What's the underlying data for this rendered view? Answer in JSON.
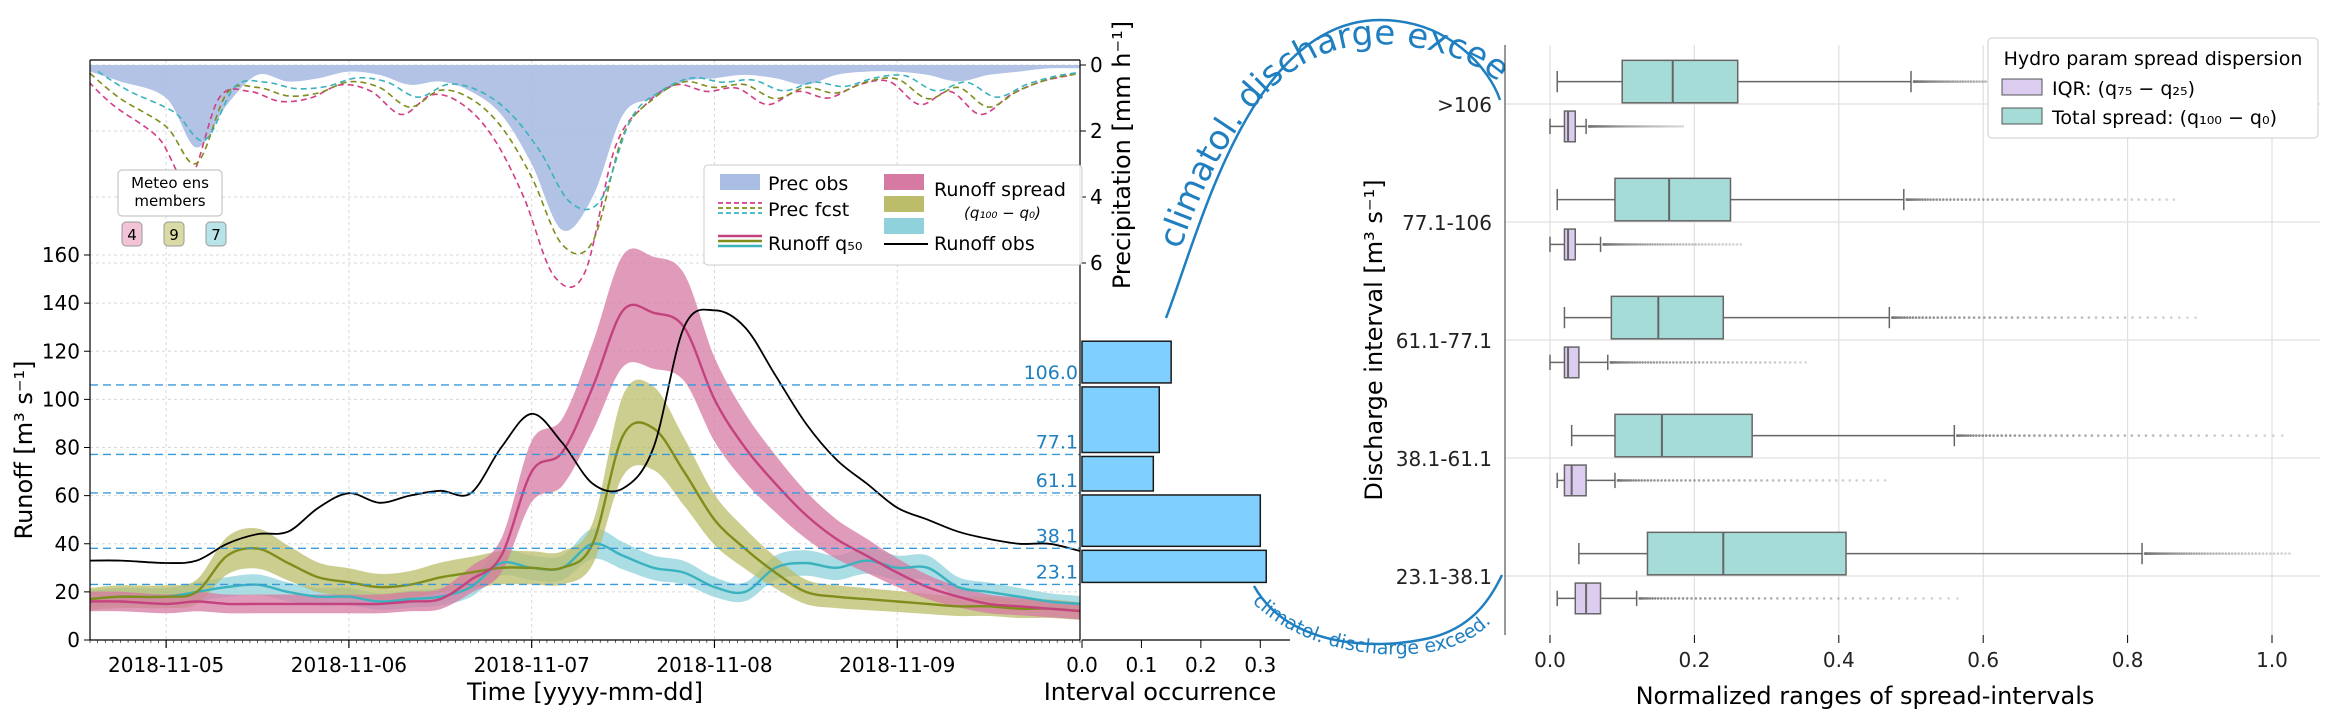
{
  "panel_left": {
    "xlabel": "Time [yyyy-mm-dd]",
    "ylabel": "Runoff [m³ s⁻¹]",
    "ylabel_top": "Precipitation [mm h⁻¹]",
    "x_ticks": [
      "2018-11-05",
      "2018-11-06",
      "2018-11-07",
      "2018-11-08",
      "2018-11-09"
    ],
    "y_ticks": [
      0,
      20,
      40,
      60,
      80,
      100,
      120,
      140,
      160
    ],
    "prec_ticks": [
      0,
      2,
      4,
      6
    ],
    "thresholds": [
      106.0,
      77.1,
      61.1,
      38.1,
      23.1
    ],
    "threshold_labels": [
      "106.0",
      "77.1",
      "61.1",
      "38.1",
      "23.1"
    ],
    "meteo_box": {
      "title_line1": "Meteo ens",
      "title_line2": "members",
      "members": [
        {
          "label": "4",
          "color": "#f2c3d6"
        },
        {
          "label": "9",
          "color": "#dadba4"
        },
        {
          "label": "7",
          "color": "#b8e3e8"
        }
      ]
    },
    "legend": {
      "prec_obs": "Prec obs",
      "prec_fcst": "Prec fcst",
      "runoff_q50": "Runoff q₅₀",
      "runoff_spread": "Runoff spread",
      "runoff_spread_sub": "(q₁₀₀ − q₀)",
      "runoff_obs": "Runoff obs"
    },
    "colors": {
      "prec_obs": "#aabde3",
      "pink": "#c4427e",
      "olive": "#7f8d1c",
      "teal": "#3ab3bf",
      "threshold": "#3a9ad9",
      "obs": "#000000"
    }
  },
  "panel_mid": {
    "xlabel": "Interval occurrence",
    "x_ticks": [
      "0.0",
      "0.1",
      "0.2",
      "0.3"
    ],
    "curve_label": "climatol. discharge exceed.",
    "bar_color": "#80d0ff"
  },
  "panel_right": {
    "xlabel": "Normalized ranges of spread-intervals",
    "ylabel": "Discharge interval [m³ s⁻¹]",
    "x_ticks": [
      "0.0",
      "0.2",
      "0.4",
      "0.6",
      "0.8",
      "1.0"
    ],
    "legend_title": "Hydro param spread dispersion",
    "legend_iqr": "IQR: (q₇₅ − q₂₅)",
    "legend_total": "Total spread: (q₁₀₀ − q₀)",
    "colors": {
      "iqr": "#dcccef",
      "total": "#a6dcd8"
    }
  },
  "chart_data": [
    {
      "type": "line",
      "title": "",
      "xlabel": "Time [yyyy-mm-dd]",
      "ylabel": "Runoff [m³ s⁻¹]",
      "ylim": [
        0,
        160
      ],
      "xlim": [
        "2018-11-04 14:00",
        "2018-11-10 00:00"
      ],
      "x": [
        "2018-11-04 14:00",
        "2018-11-04 18:00",
        "2018-11-05 00:00",
        "2018-11-05 04:00",
        "2018-11-05 08:00",
        "2018-11-05 12:00",
        "2018-11-05 16:00",
        "2018-11-05 20:00",
        "2018-11-06 00:00",
        "2018-11-06 04:00",
        "2018-11-06 08:00",
        "2018-11-06 12:00",
        "2018-11-06 16:00",
        "2018-11-06 20:00",
        "2018-11-07 00:00",
        "2018-11-07 04:00",
        "2018-11-07 08:00",
        "2018-11-07 12:00",
        "2018-11-07 16:00",
        "2018-11-07 20:00",
        "2018-11-08 00:00",
        "2018-11-08 04:00",
        "2018-11-08 08:00",
        "2018-11-08 12:00",
        "2018-11-08 16:00",
        "2018-11-08 20:00",
        "2018-11-09 00:00",
        "2018-11-09 04:00",
        "2018-11-09 08:00",
        "2018-11-09 12:00",
        "2018-11-09 16:00",
        "2018-11-09 20:00",
        "2018-11-10 00:00"
      ],
      "series": [
        {
          "name": "Runoff obs",
          "values": [
            33,
            33,
            32,
            33,
            40,
            44,
            45,
            55,
            61,
            57,
            60,
            62,
            61,
            80,
            94,
            82,
            65,
            63,
            80,
            130,
            137,
            130,
            110,
            90,
            75,
            65,
            55,
            50,
            45,
            42,
            40,
            40,
            37
          ]
        },
        {
          "name": "Runoff q₅₀",
          "values": [
            16,
            16,
            15,
            16,
            15,
            15,
            15,
            15,
            15,
            15,
            16,
            17,
            25,
            35,
            70,
            78,
            105,
            137,
            136,
            130,
            100,
            80,
            65,
            52,
            42,
            35,
            28,
            22,
            18,
            15,
            14,
            13,
            12
          ]
        },
        {
          "name": "",
          "values": [
            17,
            18,
            18,
            20,
            35,
            38,
            32,
            26,
            24,
            22,
            23,
            26,
            28,
            30,
            30,
            30,
            40,
            85,
            88,
            70,
            50,
            38,
            28,
            20,
            18,
            17,
            16,
            15,
            14,
            14,
            13,
            13,
            12
          ]
        },
        {
          "name": "",
          "values": [
            17,
            18,
            18,
            20,
            22,
            23,
            20,
            18,
            18,
            16,
            17,
            18,
            22,
            32,
            30,
            30,
            40,
            35,
            30,
            28,
            22,
            20,
            30,
            32,
            30,
            33,
            30,
            30,
            22,
            20,
            18,
            16,
            15
          ]
        }
      ]
    },
    {
      "type": "area",
      "ylabel": "Precipitation [mm h⁻¹]",
      "ylim": [
        0,
        7
      ],
      "series": [
        {
          "name": "Prec obs",
          "values": [
            0.2,
            0.5,
            1.0,
            2.5,
            1.2,
            0.3,
            0.5,
            0.4,
            0.2,
            0.3,
            0.6,
            0.5,
            0.8,
            1.5,
            3.0,
            5.0,
            4.0,
            1.5,
            1.0,
            0.5,
            0.4,
            0.3,
            0.4,
            0.6,
            0.3,
            0.2,
            0.2,
            0.3,
            0.5,
            0.3,
            0.2,
            0.1,
            0.1
          ]
        },
        {
          "name": "Prec fcst",
          "values": [
            0.3,
            1.2,
            2.2,
            3.5,
            1.0,
            0.8,
            1.1,
            1.0,
            0.6,
            0.8,
            1.5,
            0.9,
            1.2,
            2.2,
            4.0,
            6.4,
            6.3,
            2.5,
            1.2,
            0.6,
            0.8,
            0.7,
            1.2,
            0.8,
            1.0,
            0.6,
            0.5,
            1.2,
            0.8,
            1.5,
            0.9,
            0.5,
            0.3
          ]
        }
      ]
    },
    {
      "type": "bar",
      "xlabel": "Interval occurrence",
      "xlim": [
        0,
        0.35
      ],
      "categories": [
        "23.1-38.1",
        "38.1-61.1",
        "61.1-77.1",
        "77.1-106",
        ">106"
      ],
      "values": [
        0.31,
        0.3,
        0.12,
        0.13,
        0.15
      ]
    },
    {
      "type": "box",
      "xlabel": "Normalized ranges of spread-intervals",
      "ylabel": "Discharge interval [m³ s⁻¹]",
      "xlim": [
        -0.02,
        1.04
      ],
      "categories": [
        ">106",
        "77.1-106",
        "61.1-77.1",
        "38.1-61.1",
        "23.1-38.1"
      ],
      "series": [
        {
          "name": "IQR: (q₇₅ − q₂₅)",
          "stats": [
            {
              "min": 0.0,
              "q1": 0.02,
              "median": 0.025,
              "q3": 0.035,
              "max": 0.05,
              "outlier_max": 0.18
            },
            {
              "min": 0.0,
              "q1": 0.02,
              "median": 0.025,
              "q3": 0.035,
              "max": 0.07,
              "outlier_max": 0.26
            },
            {
              "min": 0.0,
              "q1": 0.02,
              "median": 0.025,
              "q3": 0.04,
              "max": 0.08,
              "outlier_max": 0.35
            },
            {
              "min": 0.01,
              "q1": 0.02,
              "median": 0.03,
              "q3": 0.05,
              "max": 0.09,
              "outlier_max": 0.46
            },
            {
              "min": 0.01,
              "q1": 0.035,
              "median": 0.05,
              "q3": 0.07,
              "max": 0.12,
              "outlier_max": 0.56
            }
          ]
        },
        {
          "name": "Total spread: (q₁₀₀ − q₀)",
          "stats": [
            {
              "min": 0.01,
              "q1": 0.1,
              "median": 0.17,
              "q3": 0.26,
              "max": 0.5,
              "outlier_max": 0.7
            },
            {
              "min": 0.01,
              "q1": 0.09,
              "median": 0.165,
              "q3": 0.25,
              "max": 0.49,
              "outlier_max": 0.86
            },
            {
              "min": 0.02,
              "q1": 0.085,
              "median": 0.15,
              "q3": 0.24,
              "max": 0.47,
              "outlier_max": 0.89
            },
            {
              "min": 0.03,
              "q1": 0.09,
              "median": 0.155,
              "q3": 0.28,
              "max": 0.56,
              "outlier_max": 1.01
            },
            {
              "min": 0.04,
              "q1": 0.135,
              "median": 0.24,
              "q3": 0.41,
              "max": 0.82,
              "outlier_max": 1.02
            }
          ]
        }
      ]
    }
  ]
}
